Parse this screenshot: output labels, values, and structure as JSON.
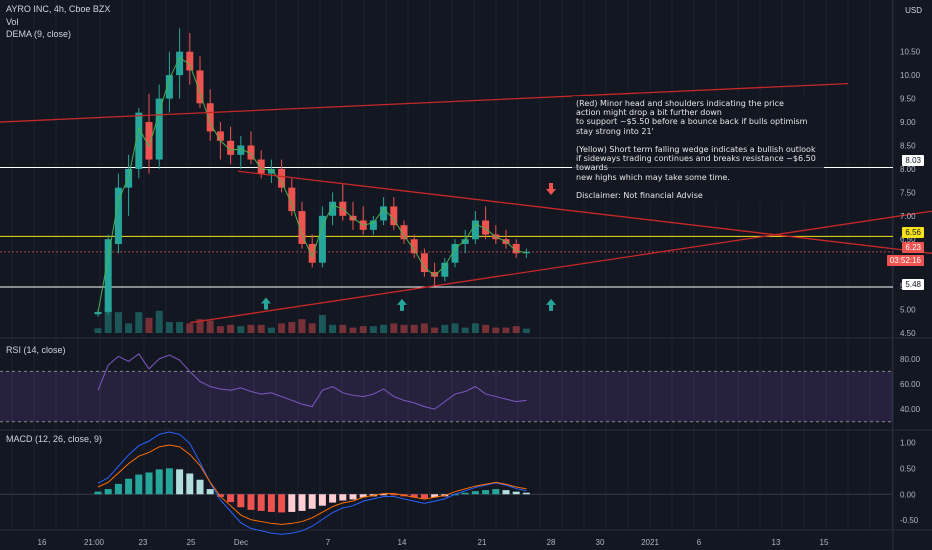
{
  "header": {
    "symbol_title": "AYRO INC, 4h, Cboe BZX",
    "vol_label": "Vol",
    "dema_label": "DEMA (9, close)",
    "rsi_label": "RSI (14, close)",
    "macd_label": "MACD (12, 26, close, 9)",
    "currency": "USD"
  },
  "annotation": {
    "lines": [
      "(Red) Minor head and shoulders indicating the price",
      "action might drop a bit further down",
      "to support ~$5.50 before a bounce back if bulls optimism",
      "stay strong into 21'",
      "",
      "(Yellow) Short term falling wedge indicates a bullish outlook",
      "if sideways trading continues and breaks resistance ~$6.50",
      "towards",
      "new highs which may take some time.",
      "",
      "Disclaimer: Not financial Advise"
    ]
  },
  "price_tags": {
    "level_high": "8.03",
    "level_yellow": "6.56",
    "last_price": "6.23",
    "countdown": "03:52:16",
    "level_low": "5.48"
  },
  "colors": {
    "up": "#26a69a",
    "down": "#ef5350",
    "background": "#131722",
    "resistance": "#c62828",
    "yellow": "#f5e21b",
    "rsi": "#7e57c2"
  },
  "chart_data": [
    {
      "type": "candlestick",
      "name": "price",
      "x_ticks": [
        "16",
        "21:00",
        "23",
        "25",
        "Dec",
        "7",
        "14",
        "21",
        "28",
        "30",
        "2021",
        "6",
        "13",
        "15"
      ],
      "y_ticks": [
        "4.50",
        "5.00",
        "5.50",
        "6.00",
        "6.50",
        "7.00",
        "7.50",
        "8.00",
        "8.50",
        "9.00",
        "9.50",
        "10.00",
        "10.50"
      ],
      "ylim": [
        4.5,
        10.75
      ],
      "ohlc": [
        [
          4.9,
          5.0,
          4.85,
          4.95
        ],
        [
          4.95,
          6.6,
          4.9,
          6.5
        ],
        [
          6.4,
          7.9,
          6.2,
          7.6
        ],
        [
          7.6,
          8.3,
          7.0,
          8.0
        ],
        [
          8.0,
          9.3,
          7.8,
          9.2
        ],
        [
          9.0,
          9.6,
          7.9,
          8.2
        ],
        [
          8.2,
          9.8,
          8.0,
          9.5
        ],
        [
          9.5,
          10.5,
          9.2,
          10.0
        ],
        [
          10.0,
          11.0,
          9.5,
          10.5
        ],
        [
          10.5,
          10.9,
          9.8,
          10.1
        ],
        [
          10.1,
          10.4,
          9.3,
          9.4
        ],
        [
          9.4,
          9.7,
          8.6,
          8.8
        ],
        [
          8.8,
          9.0,
          8.2,
          8.6
        ],
        [
          8.6,
          8.9,
          8.1,
          8.3
        ],
        [
          8.3,
          8.7,
          8.0,
          8.5
        ],
        [
          8.5,
          8.8,
          8.1,
          8.2
        ],
        [
          8.2,
          8.4,
          7.8,
          7.9
        ],
        [
          7.9,
          8.2,
          7.7,
          8.0
        ],
        [
          8.0,
          8.2,
          7.5,
          7.6
        ],
        [
          7.6,
          7.8,
          7.0,
          7.1
        ],
        [
          7.1,
          7.3,
          6.3,
          6.4
        ],
        [
          6.4,
          6.6,
          5.9,
          6.0
        ],
        [
          6.0,
          7.2,
          5.9,
          7.0
        ],
        [
          7.0,
          7.5,
          6.8,
          7.3
        ],
        [
          7.3,
          7.7,
          6.9,
          7.0
        ],
        [
          7.0,
          7.3,
          6.7,
          6.9
        ],
        [
          6.9,
          7.2,
          6.6,
          6.7
        ],
        [
          6.7,
          7.0,
          6.6,
          6.9
        ],
        [
          6.9,
          7.4,
          6.8,
          7.2
        ],
        [
          7.2,
          7.4,
          6.7,
          6.8
        ],
        [
          6.8,
          6.9,
          6.4,
          6.5
        ],
        [
          6.5,
          6.6,
          6.1,
          6.2
        ],
        [
          6.2,
          6.3,
          5.7,
          5.8
        ],
        [
          5.8,
          6.0,
          5.5,
          5.7
        ],
        [
          5.7,
          6.1,
          5.6,
          6.0
        ],
        [
          6.0,
          6.5,
          5.9,
          6.4
        ],
        [
          6.4,
          6.7,
          6.2,
          6.5
        ],
        [
          6.5,
          7.1,
          6.4,
          6.9
        ],
        [
          6.9,
          7.2,
          6.5,
          6.6
        ],
        [
          6.6,
          6.8,
          6.4,
          6.5
        ],
        [
          6.5,
          6.7,
          6.3,
          6.4
        ],
        [
          6.4,
          6.5,
          6.1,
          6.2
        ],
        [
          6.2,
          6.3,
          6.1,
          6.23
        ]
      ]
    },
    {
      "type": "line",
      "name": "RSI",
      "y_ticks": [
        "40.00",
        "60.00",
        "80.00"
      ],
      "ylim": [
        25,
        95
      ],
      "values": [
        55,
        75,
        82,
        78,
        84,
        72,
        80,
        83,
        79,
        70,
        62,
        58,
        56,
        55,
        57,
        54,
        52,
        53,
        50,
        47,
        44,
        42,
        55,
        58,
        53,
        51,
        50,
        52,
        56,
        50,
        47,
        45,
        42,
        40,
        46,
        52,
        54,
        58,
        52,
        50,
        48,
        46,
        47
      ]
    },
    {
      "type": "bar",
      "name": "MACD",
      "y_ticks": [
        "-0.50",
        "0.00",
        "0.50",
        "1.00"
      ],
      "ylim": [
        -0.65,
        1.2
      ],
      "histogram": [
        0.05,
        0.1,
        0.2,
        0.3,
        0.38,
        0.42,
        0.48,
        0.5,
        0.48,
        0.4,
        0.28,
        0.1,
        -0.05,
        -0.15,
        -0.25,
        -0.3,
        -0.32,
        -0.34,
        -0.35,
        -0.34,
        -0.32,
        -0.28,
        -0.22,
        -0.16,
        -0.12,
        -0.1,
        -0.06,
        -0.04,
        -0.02,
        -0.02,
        -0.04,
        -0.06,
        -0.08,
        -0.06,
        -0.04,
        0.0,
        0.03,
        0.06,
        0.08,
        0.1,
        0.08,
        0.05,
        0.03
      ]
    }
  ]
}
